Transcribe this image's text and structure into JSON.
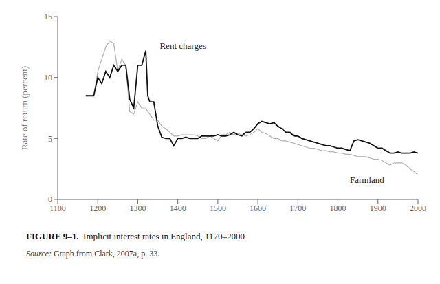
{
  "chart_data": {
    "type": "line",
    "ylabel": "Rate of return (percent)",
    "x": [
      1170,
      1190,
      1200,
      1210,
      1220,
      1230,
      1240,
      1250,
      1260,
      1270,
      1280,
      1290,
      1300,
      1310,
      1320,
      1325,
      1330,
      1340,
      1350,
      1360,
      1370,
      1380,
      1390,
      1400,
      1410,
      1420,
      1430,
      1440,
      1450,
      1460,
      1470,
      1480,
      1490,
      1500,
      1510,
      1520,
      1530,
      1540,
      1550,
      1560,
      1570,
      1580,
      1590,
      1600,
      1610,
      1620,
      1630,
      1640,
      1650,
      1660,
      1670,
      1680,
      1690,
      1700,
      1710,
      1720,
      1730,
      1740,
      1750,
      1760,
      1770,
      1780,
      1790,
      1800,
      1810,
      1820,
      1830,
      1840,
      1850,
      1860,
      1870,
      1880,
      1890,
      1900,
      1910,
      1920,
      1930,
      1940,
      1950,
      1960,
      1970,
      1980,
      1990,
      2000
    ],
    "series": [
      {
        "name": "Farmland",
        "color": "#b0b0b0",
        "values": [
          8.5,
          8.5,
          10.5,
          11.5,
          12.5,
          13.0,
          12.8,
          10.5,
          11.5,
          11.0,
          7.2,
          7.0,
          8.0,
          7.5,
          7.5,
          7.2,
          7.0,
          6.5,
          6.5,
          6.0,
          5.8,
          5.5,
          5.2,
          5.2,
          5.3,
          5.3,
          5.3,
          5.3,
          5.2,
          5.0,
          5.0,
          5.2,
          5.0,
          4.8,
          5.3,
          5.3,
          5.5,
          5.3,
          5.4,
          5.3,
          5.2,
          5.3,
          5.5,
          5.8,
          5.5,
          5.4,
          5.2,
          5.0,
          5.0,
          4.8,
          4.8,
          4.7,
          4.6,
          4.5,
          4.4,
          4.3,
          4.2,
          4.2,
          4.1,
          4.0,
          4.0,
          3.9,
          3.9,
          3.8,
          3.8,
          3.7,
          3.7,
          3.6,
          3.5,
          3.5,
          3.5,
          3.4,
          3.3,
          3.3,
          3.2,
          3.0,
          2.8,
          3.0,
          3.0,
          3.0,
          2.8,
          2.5,
          2.3,
          2.0
        ]
      },
      {
        "name": "Rent charges",
        "color": "#111111",
        "values": [
          8.5,
          8.5,
          10.0,
          9.5,
          10.5,
          10.0,
          11.0,
          10.5,
          11.0,
          11.0,
          8.2,
          7.5,
          11.0,
          11.0,
          12.2,
          8.5,
          8.0,
          8.0,
          6.0,
          5.1,
          5.0,
          5.0,
          4.4,
          5.0,
          5.0,
          5.1,
          5.0,
          5.0,
          5.0,
          5.2,
          5.2,
          5.2,
          5.2,
          5.3,
          5.2,
          5.2,
          5.3,
          5.5,
          5.3,
          5.2,
          5.5,
          5.5,
          5.8,
          6.2,
          6.4,
          6.3,
          6.2,
          6.3,
          6.0,
          5.8,
          5.5,
          5.5,
          5.2,
          5.2,
          5.0,
          4.9,
          4.8,
          4.7,
          4.6,
          4.5,
          4.4,
          4.4,
          4.3,
          4.2,
          4.2,
          4.1,
          4.0,
          4.8,
          4.9,
          4.8,
          4.7,
          4.6,
          4.4,
          4.2,
          4.2,
          4.0,
          3.8,
          3.8,
          3.9,
          3.8,
          3.8,
          3.8,
          3.9,
          3.8
        ]
      }
    ],
    "annotations": [
      {
        "text": "Rent charges",
        "x": 1355,
        "y": 12.1
      },
      {
        "text": "Farmland",
        "x": 1830,
        "y": 2.05
      }
    ],
    "xlim": [
      1100,
      2000
    ],
    "xticks": [
      1100,
      1200,
      1300,
      1400,
      1500,
      1600,
      1700,
      1800,
      1900,
      2000
    ],
    "ylim": [
      0,
      15
    ],
    "yticks": [
      0,
      5,
      10,
      15
    ],
    "grid": false,
    "caption_label": "FIGURE 9–1.",
    "caption": "  Implicit interest rates in England, 1170–2000",
    "source_label": "Source:",
    "source": " Graph from Clark, 2007a, p. 33."
  }
}
